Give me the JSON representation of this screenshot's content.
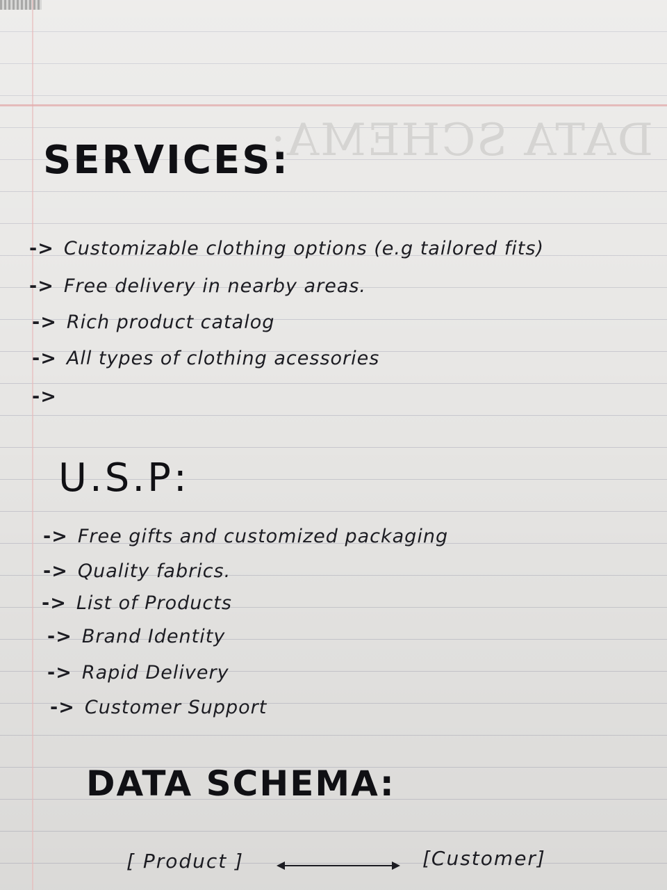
{
  "services": {
    "heading": "SERVICES:",
    "items": [
      "Customizable  clothing  options (e.g  tailored fits)",
      "Free  delivery  in  nearby  areas.",
      "Rich  product  catalog",
      "All  types  of  clothing  acessories",
      ""
    ]
  },
  "usp": {
    "heading": "U.S.P:",
    "items": [
      "Free  gifts  and customized packaging",
      "Quality  fabrics.",
      "List  of  Products",
      "Brand  Identity",
      "Rapid  Delivery",
      "Customer  Support"
    ]
  },
  "data_schema": {
    "heading": "DATA SCHEMA:",
    "entity_left": "[ Product ]",
    "entity_right": "[Customer]"
  },
  "arrow_glyph": "->",
  "colors": {
    "ink": "#1c1c22",
    "rule_line": "#c9c9cf",
    "margin_line": "#e8b9b9"
  }
}
